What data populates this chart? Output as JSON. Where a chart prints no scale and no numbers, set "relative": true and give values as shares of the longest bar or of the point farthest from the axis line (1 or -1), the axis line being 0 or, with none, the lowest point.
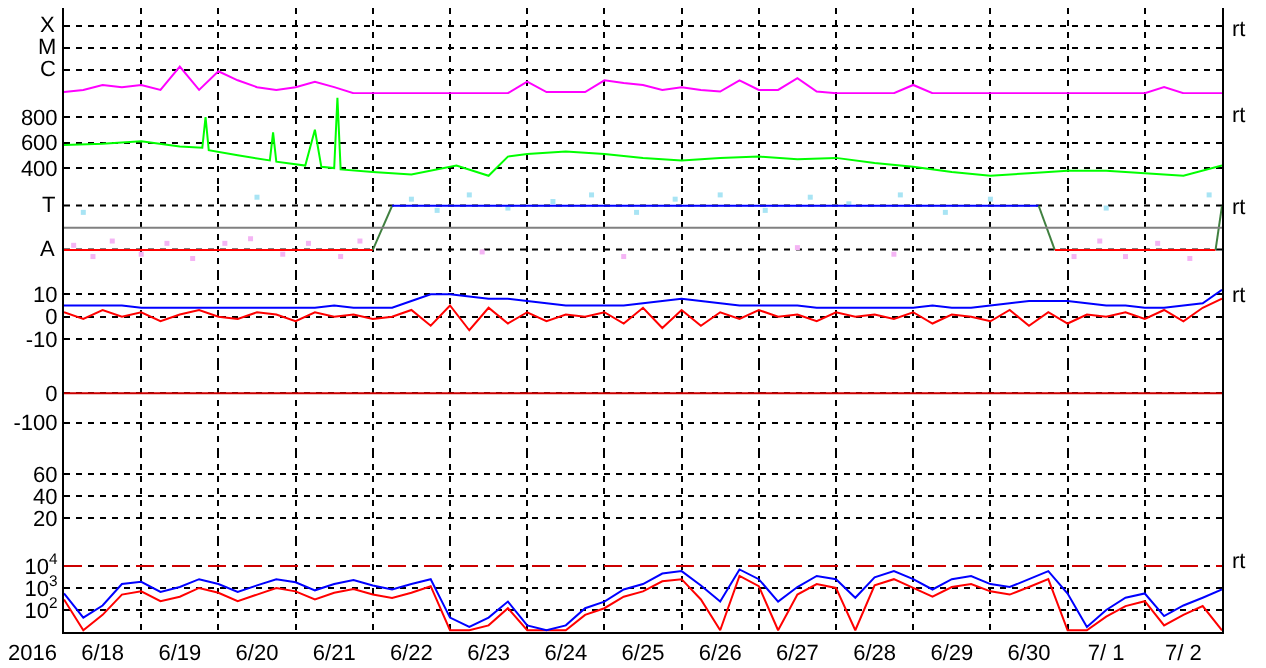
{
  "chart_data": [
    {
      "type": "line",
      "relative": true,
      "grid": true,
      "tick_labels": "y",
      "annotations": [
        "X",
        "M",
        "C",
        "rt"
      ],
      "xlim": [
        "2016-06-18T00:00",
        "2016-07-03T00:00"
      ],
      "x": [
        "2016-06-18T00:00",
        "2016-06-18T06:00",
        "2016-06-18T12:00",
        "2016-06-18T18:00",
        "2016-06-19T00:00",
        "2016-06-19T06:00",
        "2016-06-19T12:00",
        "2016-06-19T18:00",
        "2016-06-20T00:00",
        "2016-06-20T06:00",
        "2016-06-20T12:00",
        "2016-06-20T18:00",
        "2016-06-21T00:00",
        "2016-06-21T06:00",
        "2016-06-21T12:00",
        "2016-06-21T18:00",
        "2016-06-22T00:00",
        "2016-06-22T06:00",
        "2016-06-22T12:00",
        "2016-06-22T18:00",
        "2016-06-23T00:00",
        "2016-06-23T06:00",
        "2016-06-23T12:00",
        "2016-06-23T18:00",
        "2016-06-24T00:00",
        "2016-06-24T06:00",
        "2016-06-24T12:00",
        "2016-06-24T18:00",
        "2016-06-25T00:00",
        "2016-06-25T06:00",
        "2016-06-25T12:00",
        "2016-06-25T18:00",
        "2016-06-26T00:00",
        "2016-06-26T06:00",
        "2016-06-26T12:00",
        "2016-06-26T18:00",
        "2016-06-27T00:00",
        "2016-06-27T06:00",
        "2016-06-27T12:00",
        "2016-06-27T18:00",
        "2016-06-28T00:00",
        "2016-06-28T06:00",
        "2016-06-28T12:00",
        "2016-06-28T18:00",
        "2016-06-29T00:00",
        "2016-06-29T06:00",
        "2016-06-29T12:00",
        "2016-06-29T18:00",
        "2016-06-30T00:00",
        "2016-06-30T06:00",
        "2016-06-30T12:00",
        "2016-06-30T18:00",
        "2016-07-01T00:00",
        "2016-07-01T06:00",
        "2016-07-01T12:00",
        "2016-07-01T18:00",
        "2016-07-02T00:00",
        "2016-07-02T06:00",
        "2016-07-02T12:00",
        "2016-07-02T18:00",
        "2016-07-03T00:00"
      ],
      "series": [
        {
          "color": "#ff00ff",
          "values": [
            0.07,
            0.15,
            0.33,
            0.25,
            0.33,
            0.15,
            1,
            0.15,
            0.83,
            0.5,
            0.25,
            0.15,
            0.25,
            0.45,
            0.25,
            0.03,
            0.03,
            0.03,
            0.03,
            0.03,
            0.03,
            0.03,
            0.03,
            0.03,
            0.45,
            0.07,
            0.07,
            0.07,
            0.5,
            0.4,
            0.33,
            0.15,
            0.25,
            0.15,
            0.09,
            0.5,
            0.15,
            0.15,
            0.58,
            0.09,
            0.03,
            0.03,
            0.03,
            0.03,
            0.33,
            0.03,
            0.03,
            0.03,
            0.03,
            0.03,
            0.03,
            0.03,
            0.03,
            0.03,
            0.03,
            0.03,
            0.03,
            0.25,
            0.03,
            0.03,
            0.03
          ]
        }
      ]
    },
    {
      "type": "line",
      "grid": true,
      "tick_labels": "y",
      "annotations": [
        "rt"
      ],
      "xlim": [
        "2016-06-18T00:00",
        "2016-07-03T00:00"
      ],
      "ylim": [
        260,
        980
      ],
      "yticks": [
        400,
        600,
        800
      ],
      "series": [
        {
          "color": "#00ff00",
          "x": [
            "2016-06-18T00:00",
            "2016-06-18T12:00",
            "2016-06-19T00:00",
            "2016-06-19T12:00",
            "2016-06-19T19:00",
            "2016-06-19T20:00",
            "2016-06-19T21:00",
            "2016-06-20T06:00",
            "2016-06-20T16:00",
            "2016-06-20T17:00",
            "2016-06-20T18:00",
            "2016-06-21T03:00",
            "2016-06-21T06:00",
            "2016-06-21T08:00",
            "2016-06-21T12:00",
            "2016-06-21T13:00",
            "2016-06-21T14:00",
            "2016-06-22T00:00",
            "2016-06-22T12:00",
            "2016-06-23T02:00",
            "2016-06-23T12:00",
            "2016-06-23T18:00",
            "2016-06-24T00:00",
            "2016-06-24T12:00",
            "2016-06-25T00:00",
            "2016-06-25T12:00",
            "2016-06-26T00:00",
            "2016-06-26T12:00",
            "2016-06-27T00:00",
            "2016-06-27T12:00",
            "2016-06-28T00:00",
            "2016-06-28T12:00",
            "2016-06-29T00:00",
            "2016-06-29T12:00",
            "2016-06-30T00:00",
            "2016-06-30T12:00",
            "2016-07-01T00:00",
            "2016-07-01T12:00",
            "2016-07-02T00:00",
            "2016-07-02T12:00",
            "2016-07-03T00:00"
          ],
          "values": [
            580,
            590,
            610,
            570,
            560,
            800,
            540,
            500,
            460,
            680,
            450,
            420,
            700,
            410,
            400,
            950,
            390,
            370,
            350,
            420,
            340,
            490,
            510,
            530,
            510,
            480,
            460,
            480,
            490,
            470,
            480,
            440,
            410,
            370,
            340,
            360,
            380,
            380,
            360,
            340,
            420
          ]
        }
      ]
    },
    {
      "type": "line",
      "relative": true,
      "grid": true,
      "tick_labels": "y",
      "annotations": [
        "T",
        "A",
        "rt"
      ],
      "xlim": [
        "2016-06-18T00:00",
        "2016-07-03T00:00"
      ],
      "ref_lines": [
        {
          "axis": "y",
          "value": 0,
          "color": "#808080"
        }
      ],
      "series": [
        {
          "type": "scatter",
          "color": "#f4b4f4",
          "x": [
            "2016-06-18T03:00",
            "2016-06-18T09:00",
            "2016-06-18T15:00",
            "2016-06-19T00:00",
            "2016-06-19T08:00",
            "2016-06-19T16:00",
            "2016-06-20T02:00",
            "2016-06-20T10:00",
            "2016-06-20T20:00",
            "2016-06-21T04:00",
            "2016-06-21T14:00",
            "2016-06-21T20:00",
            "2016-06-23T10:00",
            "2016-06-25T06:00",
            "2016-06-27T12:00",
            "2016-06-28T18:00",
            "2016-07-01T02:00",
            "2016-07-01T10:00",
            "2016-07-01T18:00",
            "2016-07-02T04:00",
            "2016-07-02T14:00"
          ],
          "values": [
            -0.53,
            -0.87,
            -0.4,
            -0.8,
            -0.47,
            -0.93,
            -0.47,
            -0.33,
            -0.8,
            -0.47,
            -0.87,
            -0.4,
            -0.73,
            -0.87,
            -0.6,
            -0.8,
            -0.87,
            -0.4,
            -0.87,
            -0.47,
            -0.93
          ]
        },
        {
          "type": "scatter",
          "color": "#a8e4f4",
          "x": [
            "2016-06-18T06:00",
            "2016-06-20T12:00",
            "2016-06-22T12:00",
            "2016-06-22T20:00",
            "2016-06-23T06:00",
            "2016-06-23T18:00",
            "2016-06-24T08:00",
            "2016-06-24T20:00",
            "2016-06-25T10:00",
            "2016-06-25T22:00",
            "2016-06-26T12:00",
            "2016-06-27T02:00",
            "2016-06-27T16:00",
            "2016-06-28T04:00",
            "2016-06-28T20:00",
            "2016-06-29T10:00",
            "2016-06-30T00:00",
            "2016-07-01T12:00",
            "2016-07-02T20:00"
          ],
          "values": [
            0.47,
            0.93,
            0.87,
            0.53,
            1,
            0.6,
            0.8,
            1,
            0.47,
            0.87,
            1,
            0.53,
            0.93,
            0.73,
            1,
            0.47,
            0.87,
            0.6,
            1
          ]
        },
        {
          "color": "#ff0000",
          "x": [
            "2016-06-18T00:00",
            "2016-06-22T00:00"
          ],
          "values": [
            -0.67,
            -0.67
          ]
        },
        {
          "color": "#408040",
          "x": [
            "2016-06-22T00:00",
            "2016-06-22T06:00"
          ],
          "values": [
            -0.67,
            0.67
          ]
        },
        {
          "color": "#0000ff",
          "x": [
            "2016-06-22T06:00",
            "2016-06-30T15:00"
          ],
          "values": [
            0.67,
            0.67
          ]
        },
        {
          "color": "#408040",
          "x": [
            "2016-06-30T15:00",
            "2016-06-30T20:00"
          ],
          "values": [
            0.67,
            -0.67
          ]
        },
        {
          "color": "#ff0000",
          "x": [
            "2016-06-30T20:00",
            "2016-07-02T22:00"
          ],
          "values": [
            -0.67,
            -0.67
          ]
        },
        {
          "color": "#408040",
          "x": [
            "2016-07-02T22:00",
            "2016-07-03T00:00"
          ],
          "values": [
            -0.67,
            0.67
          ]
        }
      ]
    },
    {
      "type": "line",
      "grid": true,
      "tick_labels": "y",
      "annotations": [
        "rt"
      ],
      "xlim": [
        "2016-06-18T00:00",
        "2016-07-03T00:00"
      ],
      "ylim": [
        -21,
        19
      ],
      "yticks": [
        10,
        0,
        -10
      ],
      "x": [
        "2016-06-18T00:00",
        "2016-06-18T06:00",
        "2016-06-18T12:00",
        "2016-06-18T18:00",
        "2016-06-19T00:00",
        "2016-06-19T06:00",
        "2016-06-19T12:00",
        "2016-06-19T18:00",
        "2016-06-20T00:00",
        "2016-06-20T06:00",
        "2016-06-20T12:00",
        "2016-06-20T18:00",
        "2016-06-21T00:00",
        "2016-06-21T06:00",
        "2016-06-21T12:00",
        "2016-06-21T18:00",
        "2016-06-22T00:00",
        "2016-06-22T06:00",
        "2016-06-22T12:00",
        "2016-06-22T18:00",
        "2016-06-23T00:00",
        "2016-06-23T06:00",
        "2016-06-23T12:00",
        "2016-06-23T18:00",
        "2016-06-24T00:00",
        "2016-06-24T06:00",
        "2016-06-24T12:00",
        "2016-06-24T18:00",
        "2016-06-25T00:00",
        "2016-06-25T06:00",
        "2016-06-25T12:00",
        "2016-06-25T18:00",
        "2016-06-26T00:00",
        "2016-06-26T06:00",
        "2016-06-26T12:00",
        "2016-06-26T18:00",
        "2016-06-27T00:00",
        "2016-06-27T06:00",
        "2016-06-27T12:00",
        "2016-06-27T18:00",
        "2016-06-28T00:00",
        "2016-06-28T06:00",
        "2016-06-28T12:00",
        "2016-06-28T18:00",
        "2016-06-29T00:00",
        "2016-06-29T06:00",
        "2016-06-29T12:00",
        "2016-06-29T18:00",
        "2016-06-30T00:00",
        "2016-06-30T06:00",
        "2016-06-30T12:00",
        "2016-06-30T18:00",
        "2016-07-01T00:00",
        "2016-07-01T06:00",
        "2016-07-01T12:00",
        "2016-07-01T18:00",
        "2016-07-02T00:00",
        "2016-07-02T06:00",
        "2016-07-02T12:00",
        "2016-07-02T18:00",
        "2016-07-03T00:00"
      ],
      "series": [
        {
          "color": "#ff0000",
          "values": [
            2,
            -1,
            3,
            0,
            2,
            -2,
            1,
            3,
            0,
            -1,
            2,
            1,
            -2,
            2,
            0,
            1,
            -1,
            0,
            3,
            -4,
            5,
            -6,
            4,
            -3,
            2,
            -2,
            1,
            0,
            2,
            -3,
            4,
            -5,
            3,
            -4,
            2,
            -1,
            3,
            0,
            1,
            -2,
            2,
            0,
            1,
            -1,
            2,
            -3,
            1,
            0,
            -2,
            3,
            -4,
            2,
            -3,
            1,
            0,
            2,
            -1,
            3,
            -2,
            4,
            8
          ]
        },
        {
          "color": "#0000ff",
          "values": [
            5,
            5,
            5,
            5,
            4,
            4,
            4,
            4,
            4,
            4,
            4,
            4,
            4,
            4,
            5,
            4,
            4,
            4,
            7,
            10,
            10,
            9,
            8,
            8,
            7,
            6,
            5,
            5,
            5,
            5,
            6,
            7,
            8,
            7,
            6,
            5,
            5,
            5,
            5,
            4,
            4,
            4,
            4,
            4,
            4,
            5,
            4,
            4,
            5,
            6,
            7,
            7,
            7,
            6,
            5,
            5,
            4,
            4,
            5,
            6,
            12
          ]
        }
      ]
    },
    {
      "type": "line",
      "grid": true,
      "tick_labels": "y",
      "xlim": [
        "2016-06-18T00:00",
        "2016-07-03T00:00"
      ],
      "ylim": [
        -200,
        100
      ],
      "yticks": [
        0,
        -100
      ],
      "series": [
        {
          "color": "#cc0000",
          "x": [
            "2016-06-18T00:00",
            "2016-07-03T00:00"
          ],
          "values": [
            0,
            0
          ]
        }
      ]
    },
    {
      "type": "line",
      "grid": true,
      "tick_labels": "y",
      "xlim": [
        "2016-06-18T00:00",
        "2016-07-03T00:00"
      ],
      "ylim": [
        0,
        80
      ],
      "yticks": [
        60,
        40,
        20
      ]
    },
    {
      "type": "line",
      "log": true,
      "grid": true,
      "xlabel": "2016",
      "annotations": [
        "rt"
      ],
      "xlim": [
        "2016-06-18T00:00",
        "2016-07-03T00:00"
      ],
      "xticks": [
        {
          "value": "2016-06-18T12:00",
          "label": "6/18"
        },
        {
          "value": "2016-06-19T12:00",
          "label": "6/19"
        },
        {
          "value": "2016-06-20T12:00",
          "label": "6/20"
        },
        {
          "value": "2016-06-21T12:00",
          "label": "6/21"
        },
        {
          "value": "2016-06-22T12:00",
          "label": "6/22"
        },
        {
          "value": "2016-06-23T12:00",
          "label": "6/23"
        },
        {
          "value": "2016-06-24T12:00",
          "label": "6/24"
        },
        {
          "value": "2016-06-25T12:00",
          "label": "6/25"
        },
        {
          "value": "2016-06-26T12:00",
          "label": "6/26"
        },
        {
          "value": "2016-06-27T12:00",
          "label": "6/27"
        },
        {
          "value": "2016-06-28T12:00",
          "label": "6/28"
        },
        {
          "value": "2016-06-29T12:00",
          "label": "6/29"
        },
        {
          "value": "2016-06-30T12:00",
          "label": "6/30"
        },
        {
          "value": "2016-07-01T12:00",
          "label": "7/ 1"
        },
        {
          "value": "2016-07-02T12:00",
          "label": "7/ 2"
        }
      ],
      "ylim": [
        10,
        150000
      ],
      "yticks": [
        {
          "value": 10000,
          "label": "10$^{4}$"
        },
        {
          "value": 1000,
          "label": "10$^{3}$"
        },
        {
          "value": 100,
          "label": "10$^{2}$"
        }
      ],
      "ref_lines": [
        {
          "axis": "y",
          "value": 10000,
          "color": "#cc0000",
          "line_style": "dashed"
        }
      ],
      "x": [
        "2016-06-18T00:00",
        "2016-06-18T06:00",
        "2016-06-18T12:00",
        "2016-06-18T18:00",
        "2016-06-19T00:00",
        "2016-06-19T06:00",
        "2016-06-19T12:00",
        "2016-06-19T18:00",
        "2016-06-20T00:00",
        "2016-06-20T06:00",
        "2016-06-20T12:00",
        "2016-06-20T18:00",
        "2016-06-21T00:00",
        "2016-06-21T06:00",
        "2016-06-21T12:00",
        "2016-06-21T18:00",
        "2016-06-22T00:00",
        "2016-06-22T06:00",
        "2016-06-22T12:00",
        "2016-06-22T18:00",
        "2016-06-23T00:00",
        "2016-06-23T06:00",
        "2016-06-23T12:00",
        "2016-06-23T18:00",
        "2016-06-24T00:00",
        "2016-06-24T06:00",
        "2016-06-24T12:00",
        "2016-06-24T18:00",
        "2016-06-25T00:00",
        "2016-06-25T06:00",
        "2016-06-25T12:00",
        "2016-06-25T18:00",
        "2016-06-26T00:00",
        "2016-06-26T06:00",
        "2016-06-26T12:00",
        "2016-06-26T18:00",
        "2016-06-27T00:00",
        "2016-06-27T06:00",
        "2016-06-27T12:00",
        "2016-06-27T18:00",
        "2016-06-28T00:00",
        "2016-06-28T06:00",
        "2016-06-28T12:00",
        "2016-06-28T18:00",
        "2016-06-29T00:00",
        "2016-06-29T06:00",
        "2016-06-29T12:00",
        "2016-06-29T18:00",
        "2016-06-30T00:00",
        "2016-06-30T06:00",
        "2016-06-30T12:00",
        "2016-06-30T18:00",
        "2016-07-01T00:00",
        "2016-07-01T06:00",
        "2016-07-01T12:00",
        "2016-07-01T18:00",
        "2016-07-02T00:00",
        "2016-07-02T06:00",
        "2016-07-02T12:00",
        "2016-07-02T18:00",
        "2016-07-03T00:00"
      ],
      "series": [
        {
          "color": "#ff0000",
          "values": [
            300,
            12,
            60,
            500,
            700,
            250,
            400,
            1000,
            600,
            250,
            500,
            1000,
            700,
            300,
            600,
            900,
            500,
            350,
            600,
            1200,
            12,
            12,
            20,
            120,
            12,
            12,
            12,
            60,
            120,
            400,
            700,
            2000,
            2500,
            300,
            12,
            3500,
            1200,
            12,
            500,
            1500,
            1000,
            12,
            1300,
            2500,
            1000,
            400,
            1100,
            1500,
            700,
            500,
            1100,
            2500,
            12,
            12,
            50,
            150,
            250,
            20,
            60,
            150,
            12
          ]
        },
        {
          "color": "#0000ff",
          "values": [
            560,
            45,
            160,
            1500,
            1900,
            660,
            1100,
            2500,
            1500,
            660,
            1300,
            2500,
            1800,
            780,
            1500,
            2300,
            1300,
            850,
            1500,
            2500,
            45,
            17,
            45,
            240,
            20,
            12,
            20,
            120,
            240,
            850,
            1500,
            4500,
            5800,
            1300,
            240,
            6900,
            2500,
            240,
            1100,
            3500,
            2500,
            360,
            3000,
            5800,
            2500,
            850,
            2500,
            3500,
            1500,
            1100,
            2500,
            5800,
            560,
            17,
            100,
            360,
            560,
            53,
            160,
            360,
            850
          ]
        }
      ]
    }
  ]
}
